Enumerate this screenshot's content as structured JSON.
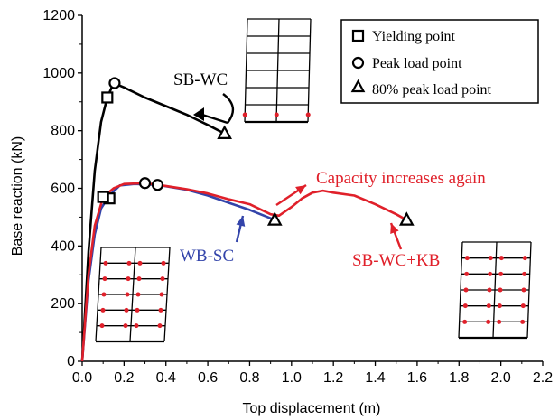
{
  "chart_data": {
    "type": "line",
    "xlabel": "Top displacement (m)",
    "ylabel": "Base reaction (kN)",
    "xlim": [
      0.0,
      2.2
    ],
    "ylim": [
      0,
      1200
    ],
    "xticks": [
      "0.0",
      "0.2",
      "0.4",
      "0.6",
      "0.8",
      "1.0",
      "1.2",
      "1.4",
      "1.6",
      "1.8",
      "2.0",
      "2.2"
    ],
    "yticks": [
      "0",
      "200",
      "400",
      "600",
      "800",
      "1000",
      "1200"
    ],
    "grid": false,
    "legend_position": "top-right",
    "legend": [
      {
        "marker": "square",
        "label": "Yielding point"
      },
      {
        "marker": "circle",
        "label": "Peak load point"
      },
      {
        "marker": "triangle",
        "label": "80% peak load point"
      }
    ],
    "series": [
      {
        "name": "SB-WC",
        "color": "#000000",
        "points": [
          [
            0.0,
            0
          ],
          [
            0.03,
            380
          ],
          [
            0.06,
            660
          ],
          [
            0.09,
            830
          ],
          [
            0.12,
            915
          ],
          [
            0.15,
            965
          ],
          [
            0.2,
            950
          ],
          [
            0.3,
            915
          ],
          [
            0.4,
            885
          ],
          [
            0.5,
            855
          ],
          [
            0.6,
            820
          ],
          [
            0.68,
            790
          ]
        ],
        "yield": [
          0.12,
          915
        ],
        "peak": [
          0.155,
          965
        ],
        "peak80": [
          0.68,
          790
        ]
      },
      {
        "name": "WB-SC",
        "color": "#3344aa",
        "points": [
          [
            0.0,
            0
          ],
          [
            0.03,
            280
          ],
          [
            0.06,
            440
          ],
          [
            0.09,
            530
          ],
          [
            0.13,
            575
          ],
          [
            0.18,
            610
          ],
          [
            0.25,
            615
          ],
          [
            0.36,
            612
          ],
          [
            0.5,
            595
          ],
          [
            0.6,
            575
          ],
          [
            0.7,
            550
          ],
          [
            0.8,
            525
          ],
          [
            0.92,
            490
          ]
        ],
        "yield": [
          0.13,
          565
        ],
        "peak": [
          0.36,
          612
        ],
        "peak80": [
          0.92,
          490
        ]
      },
      {
        "name": "SB-WC+KB",
        "color": "#e0202a",
        "points": [
          [
            0.0,
            0
          ],
          [
            0.03,
            300
          ],
          [
            0.06,
            470
          ],
          [
            0.1,
            570
          ],
          [
            0.15,
            600
          ],
          [
            0.2,
            615
          ],
          [
            0.3,
            618
          ],
          [
            0.4,
            608
          ],
          [
            0.5,
            597
          ],
          [
            0.6,
            582
          ],
          [
            0.7,
            562
          ],
          [
            0.8,
            545
          ],
          [
            0.9,
            510
          ],
          [
            0.94,
            505
          ],
          [
            1.0,
            535
          ],
          [
            1.05,
            565
          ],
          [
            1.1,
            585
          ],
          [
            1.15,
            592
          ],
          [
            1.2,
            585
          ],
          [
            1.3,
            575
          ],
          [
            1.4,
            545
          ],
          [
            1.5,
            510
          ],
          [
            1.55,
            490
          ]
        ],
        "yield": [
          0.1,
          570
        ],
        "peak": [
          0.3,
          618
        ],
        "peak80": [
          1.55,
          490
        ]
      }
    ],
    "annotations": {
      "sbwc_label": "SB-WC",
      "wbsc_label": "WB-SC",
      "sbwckb_label": "SB-WC+KB",
      "capacity_note": "Capacity increases again"
    }
  }
}
